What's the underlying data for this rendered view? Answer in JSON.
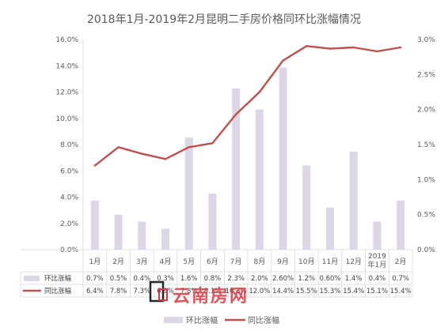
{
  "chart_data": {
    "type": "bar",
    "title": "2018年1月-2019年2月昆明二手房价格同环比涨幅情况",
    "categories": [
      "1月",
      "2月",
      "3月",
      "4月",
      "5月",
      "6月",
      "7月",
      "8月",
      "9月",
      "10月",
      "11月",
      "12月",
      "2019年1月",
      "2月"
    ],
    "category_lines": [
      [
        "1月"
      ],
      [
        "2月"
      ],
      [
        "3月"
      ],
      [
        "4月"
      ],
      [
        "5月"
      ],
      [
        "6月"
      ],
      [
        "7月"
      ],
      [
        "8月"
      ],
      [
        "9月"
      ],
      [
        "10月"
      ],
      [
        "11月"
      ],
      [
        "12月"
      ],
      [
        "2019",
        "年1月"
      ],
      [
        "2月"
      ]
    ],
    "series": [
      {
        "name": "环比涨幅",
        "kind": "bar",
        "axis": "right",
        "color": "#dcd6e6",
        "values": [
          0.7,
          0.5,
          0.4,
          0.3,
          1.6,
          0.8,
          2.3,
          2.0,
          2.6,
          1.2,
          0.6,
          1.4,
          0.4,
          0.7
        ],
        "labels": [
          "0.7%",
          "0.5%",
          "0.4%",
          "0.3%",
          "1.6%",
          "0.8%",
          "2.3%",
          "2.0%",
          "2.60%",
          "1.2%",
          "0.60%",
          "1.4%",
          "0.4%",
          "0.7%"
        ]
      },
      {
        "name": "同比涨幅",
        "kind": "line",
        "axis": "left",
        "color": "#c0504d",
        "values": [
          6.4,
          7.8,
          7.3,
          6.9,
          7.8,
          8.1,
          10.3,
          12.0,
          14.4,
          15.5,
          15.3,
          15.4,
          15.1,
          15.4
        ],
        "labels": [
          "6.4%",
          "7.8%",
          "7.3%",
          "6.9%",
          "7.8%",
          "8.1%",
          "10.3%",
          "12.0%",
          "14.4%",
          "15.5%",
          "15.3%",
          "15.4%",
          "15.1%",
          "15.4%"
        ]
      }
    ],
    "y_left": {
      "min": 0,
      "max": 16,
      "step": 2,
      "ticks": [
        "0.0%",
        "2.0%",
        "4.0%",
        "6.0%",
        "8.0%",
        "10.0%",
        "12.0%",
        "14.0%",
        "16.0%"
      ]
    },
    "y_right": {
      "min": 0,
      "max": 3,
      "step": 0.5,
      "ticks": [
        "0.0%",
        "0.5%",
        "1.0%",
        "1.5%",
        "2.0%",
        "2.5%",
        "3.0%"
      ]
    },
    "grid": false,
    "data_table": true,
    "legend": "bottom"
  },
  "watermark": {
    "text": "云南房网",
    "color": "#e0363f"
  }
}
